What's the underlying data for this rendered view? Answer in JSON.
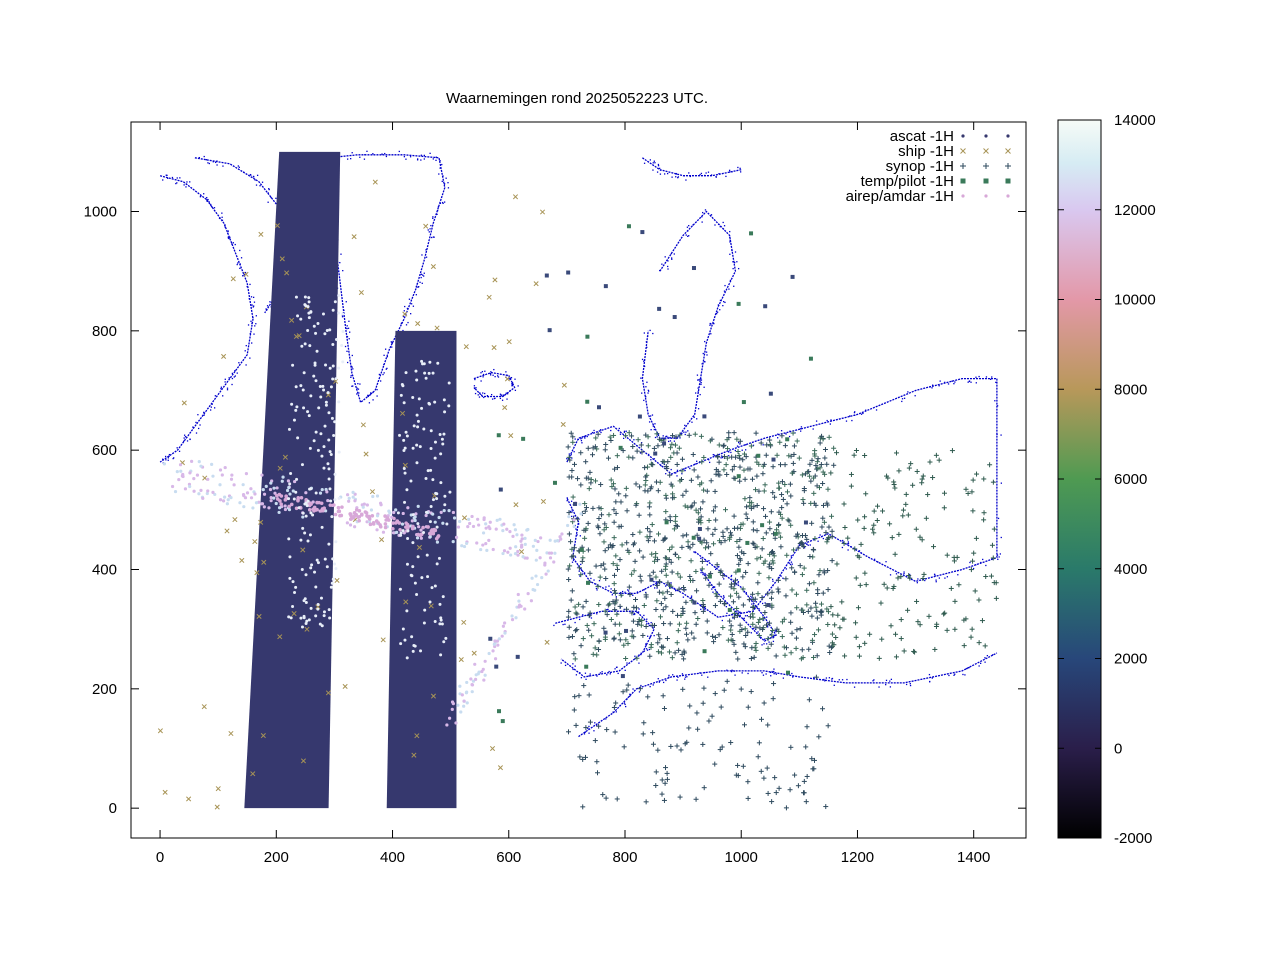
{
  "chart_data": {
    "type": "scatter",
    "title": "Waarnemingen rond 2025052223 UTC.",
    "xlim": [
      -50,
      1490
    ],
    "ylim": [
      -50,
      1150
    ],
    "x_ticks": [
      0,
      200,
      400,
      600,
      800,
      1000,
      1200,
      1400
    ],
    "y_ticks": [
      0,
      200,
      400,
      600,
      800,
      1000
    ],
    "colorbar": {
      "range": [
        -2000,
        14000
      ],
      "ticks": [
        -2000,
        0,
        2000,
        4000,
        6000,
        8000,
        10000,
        12000,
        14000
      ]
    },
    "legend_position": "top-right",
    "series": [
      {
        "name": "ascat -1H",
        "marker": "dot",
        "color": "#36386e"
      },
      {
        "name": "ship -1H",
        "marker": "x",
        "color": "#a89456"
      },
      {
        "name": "synop -1H",
        "marker": "plus",
        "color": "#2e4a5e"
      },
      {
        "name": "temp/pilot -1H",
        "marker": "square",
        "color": "#3a7a5a"
      },
      {
        "name": "airep/amdar -1H",
        "marker": "dot",
        "color": "#d8a8d8"
      }
    ],
    "ascat_swaths": [
      {
        "bottom": [
          145,
          290
        ],
        "top": [
          205,
          310
        ],
        "y": [
          0,
          1100
        ]
      },
      {
        "bottom": [
          390,
          510
        ],
        "top": [
          405,
          510
        ],
        "y": [
          0,
          800
        ]
      }
    ],
    "colors": {
      "coastline": "#0000cc",
      "swath": "#36386e"
    }
  }
}
